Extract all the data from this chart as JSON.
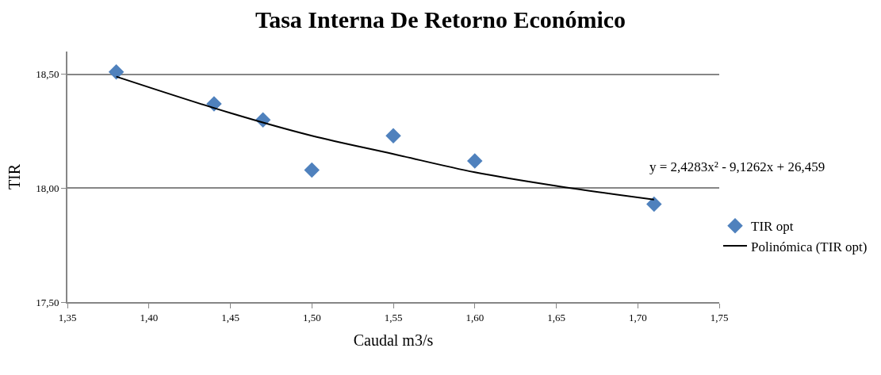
{
  "chart_data": {
    "type": "scatter",
    "title": "Tasa Interna De Retorno Económico",
    "xlabel": "Caudal m3/s",
    "ylabel": "TIR",
    "annotations": [
      "y = 2,4283x² - 9,1262x + 26,459"
    ],
    "x": [
      1.38,
      1.44,
      1.47,
      1.5,
      1.55,
      1.6,
      1.71
    ],
    "series": [
      {
        "name": "TIR opt",
        "color": "#4f81bd",
        "values": [
          18.51,
          18.37,
          18.3,
          18.08,
          18.23,
          18.12,
          17.93
        ],
        "marker": "diamond"
      },
      {
        "name": "Polinómica (TIR opt)",
        "type": "line",
        "color": "#000000",
        "marker": "none",
        "x": [
          1.38,
          1.45,
          1.5,
          1.55,
          1.6,
          1.65,
          1.71
        ],
        "values": [
          18.49,
          18.33,
          18.23,
          18.15,
          18.07,
          18.01,
          17.95
        ]
      }
    ],
    "xlim": [
      1.35,
      1.75
    ],
    "xticks": [
      {
        "value": 1.35,
        "label": "1,35"
      },
      {
        "value": 1.4,
        "label": "1,40"
      },
      {
        "value": 1.45,
        "label": "1,45"
      },
      {
        "value": 1.5,
        "label": "1,50"
      },
      {
        "value": 1.55,
        "label": "1,55"
      },
      {
        "value": 1.6,
        "label": "1,60"
      },
      {
        "value": 1.65,
        "label": "1,65"
      },
      {
        "value": 1.7,
        "label": "1,70"
      },
      {
        "value": 1.75,
        "label": "1,75"
      }
    ],
    "ylim": [
      17.5,
      18.6
    ],
    "yticks": [
      {
        "value": 17.5,
        "label": "17,50"
      },
      {
        "value": 18.0,
        "label": "18,00"
      },
      {
        "value": 18.5,
        "label": "18,50"
      }
    ],
    "grid": "y",
    "legend": "right"
  }
}
